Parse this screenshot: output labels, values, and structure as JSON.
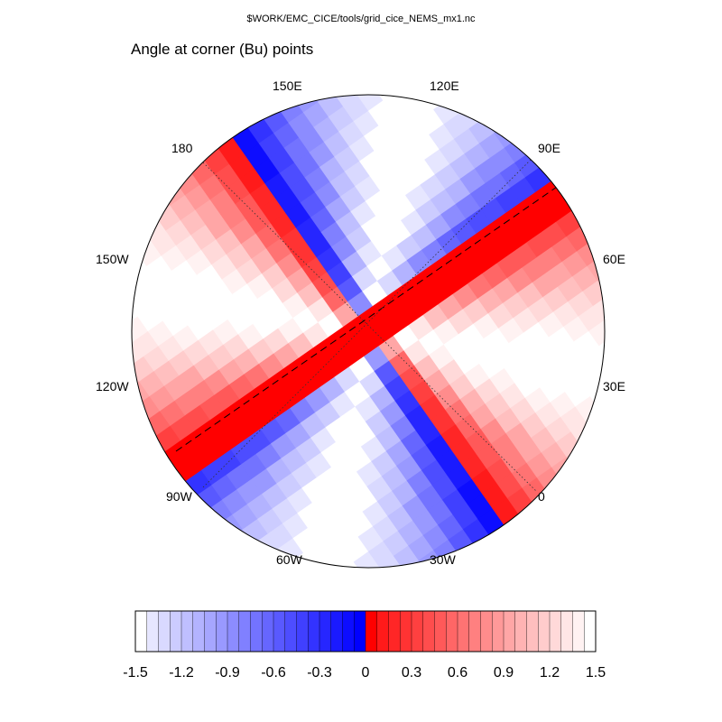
{
  "header": {
    "source_file": "$WORK/EMC_CICE/tools/grid_cice_NEMS_mx1.nc",
    "title": "Angle at corner (Bu) points"
  },
  "map": {
    "projection": "polar stereographic (north)",
    "longitude_labels": [
      "150E",
      "120E",
      "90E",
      "60E",
      "30E",
      "0",
      "30W",
      "60W",
      "90W",
      "120W",
      "150W",
      "180"
    ]
  },
  "colorbar": {
    "tick_labels": [
      "-1.5",
      "-1.2",
      "-0.9",
      "-0.6",
      "-0.3",
      "0",
      "0.3",
      "0.6",
      "0.9",
      "1.2",
      "1.5"
    ],
    "colors": [
      "#ffffff",
      "#e6e6ff",
      "#d9d9ff",
      "#ccccff",
      "#bfbfff",
      "#b3b3ff",
      "#a6a6ff",
      "#9999ff",
      "#8c8cff",
      "#8080ff",
      "#7373ff",
      "#6666ff",
      "#5959ff",
      "#4d4dff",
      "#4040ff",
      "#3333ff",
      "#2626ff",
      "#1a1aff",
      "#0d0dff",
      "#0000ff",
      "#ff0000",
      "#ff1a1a",
      "#ff2626",
      "#ff3333",
      "#ff4040",
      "#ff4d4d",
      "#ff5959",
      "#ff6666",
      "#ff7373",
      "#ff8080",
      "#ff8c8c",
      "#ff9999",
      "#ffa6a6",
      "#ffb3b3",
      "#ffbfbf",
      "#ffcccc",
      "#ffd9d9",
      "#ffe6e6",
      "#fff2f2",
      "#ffffff"
    ]
  }
}
